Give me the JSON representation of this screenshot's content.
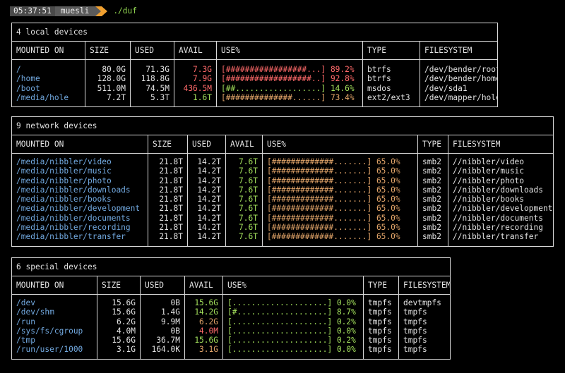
{
  "prompt": {
    "time": "05:37:51",
    "user": "muesli",
    "command": "./duf"
  },
  "colors": {
    "path": "#72a9e0",
    "critical": "#ff6a6a",
    "warning": "#e4a66a",
    "ok": "#a3e05c",
    "border": "#d8d8d8"
  },
  "local": {
    "caption": "4 local devices",
    "headers": {
      "mounted": "MOUNTED ON",
      "size": "SIZE",
      "used": "USED",
      "avail": "AVAIL",
      "use": "USE%",
      "type": "TYPE",
      "fs": "FILESYSTEM"
    },
    "rows": [
      {
        "mounted": "/",
        "size": "80.0G",
        "used": "71.3G",
        "avail": "7.3G",
        "avail_level": "critical",
        "bar": "[#################...]",
        "pct": "89.2%",
        "use_level": "critical",
        "type": "btrfs",
        "fs": "/dev/bender/root"
      },
      {
        "mounted": "/home",
        "size": "128.0G",
        "used": "118.8G",
        "avail": "7.9G",
        "avail_level": "critical",
        "bar": "[##################..]",
        "pct": "92.8%",
        "use_level": "critical",
        "type": "btrfs",
        "fs": "/dev/bender/home"
      },
      {
        "mounted": "/boot",
        "size": "511.0M",
        "used": "74.5M",
        "avail": "436.5M",
        "avail_level": "critical",
        "bar": "[##..................]",
        "pct": "14.6%",
        "use_level": "ok",
        "type": "msdos",
        "fs": "/dev/sda1"
      },
      {
        "mounted": "/media/hole",
        "size": "7.2T",
        "used": "5.3T",
        "avail": "1.6T",
        "avail_level": "ok",
        "bar": "[##############......]",
        "pct": "73.4%",
        "use_level": "warning",
        "type": "ext2/ext3",
        "fs": "/dev/mapper/hole"
      }
    ]
  },
  "network": {
    "caption": "9 network devices",
    "headers": {
      "mounted": "MOUNTED ON",
      "size": "SIZE",
      "used": "USED",
      "avail": "AVAIL",
      "use": "USE%",
      "type": "TYPE",
      "fs": "FILESYSTEM"
    },
    "rows": [
      {
        "mounted": "/media/nibbler/video",
        "size": "21.8T",
        "used": "14.2T",
        "avail": "7.6T",
        "avail_level": "ok",
        "bar": "[#############.......]",
        "pct": "65.0%",
        "use_level": "warning",
        "type": "smb2",
        "fs": "//nibbler/video"
      },
      {
        "mounted": "/media/nibbler/music",
        "size": "21.8T",
        "used": "14.2T",
        "avail": "7.6T",
        "avail_level": "ok",
        "bar": "[#############.......]",
        "pct": "65.0%",
        "use_level": "warning",
        "type": "smb2",
        "fs": "//nibbler/music"
      },
      {
        "mounted": "/media/nibbler/photo",
        "size": "21.8T",
        "used": "14.2T",
        "avail": "7.6T",
        "avail_level": "ok",
        "bar": "[#############.......]",
        "pct": "65.0%",
        "use_level": "warning",
        "type": "smb2",
        "fs": "//nibbler/photo"
      },
      {
        "mounted": "/media/nibbler/downloads",
        "size": "21.8T",
        "used": "14.2T",
        "avail": "7.6T",
        "avail_level": "ok",
        "bar": "[#############.......]",
        "pct": "65.0%",
        "use_level": "warning",
        "type": "smb2",
        "fs": "//nibbler/downloads"
      },
      {
        "mounted": "/media/nibbler/books",
        "size": "21.8T",
        "used": "14.2T",
        "avail": "7.6T",
        "avail_level": "ok",
        "bar": "[#############.......]",
        "pct": "65.0%",
        "use_level": "warning",
        "type": "smb2",
        "fs": "//nibbler/books"
      },
      {
        "mounted": "/media/nibbler/development",
        "size": "21.8T",
        "used": "14.2T",
        "avail": "7.6T",
        "avail_level": "ok",
        "bar": "[#############.......]",
        "pct": "65.0%",
        "use_level": "warning",
        "type": "smb2",
        "fs": "//nibbler/development"
      },
      {
        "mounted": "/media/nibbler/documents",
        "size": "21.8T",
        "used": "14.2T",
        "avail": "7.6T",
        "avail_level": "ok",
        "bar": "[#############.......]",
        "pct": "65.0%",
        "use_level": "warning",
        "type": "smb2",
        "fs": "//nibbler/documents"
      },
      {
        "mounted": "/media/nibbler/recording",
        "size": "21.8T",
        "used": "14.2T",
        "avail": "7.6T",
        "avail_level": "ok",
        "bar": "[#############.......]",
        "pct": "65.0%",
        "use_level": "warning",
        "type": "smb2",
        "fs": "//nibbler/recording"
      },
      {
        "mounted": "/media/nibbler/transfer",
        "size": "21.8T",
        "used": "14.2T",
        "avail": "7.6T",
        "avail_level": "ok",
        "bar": "[#############.......]",
        "pct": "65.0%",
        "use_level": "warning",
        "type": "smb2",
        "fs": "//nibbler/transfer"
      }
    ]
  },
  "special": {
    "caption": "6 special devices",
    "headers": {
      "mounted": "MOUNTED ON",
      "size": "SIZE",
      "used": "USED",
      "avail": "AVAIL",
      "use": "USE%",
      "type": "TYPE",
      "fs": "FILESYSTEM"
    },
    "rows": [
      {
        "mounted": "/dev",
        "size": "15.6G",
        "used": "0B",
        "avail": "15.6G",
        "avail_level": "ok",
        "bar": "[....................]",
        "pct": "0.0%",
        "use_level": "ok",
        "type": "tmpfs",
        "fs": "devtmpfs"
      },
      {
        "mounted": "/dev/shm",
        "size": "15.6G",
        "used": "1.4G",
        "avail": "14.2G",
        "avail_level": "ok",
        "bar": "[#...................]",
        "pct": "8.7%",
        "use_level": "ok",
        "type": "tmpfs",
        "fs": "tmpfs"
      },
      {
        "mounted": "/run",
        "size": "6.2G",
        "used": "9.9M",
        "avail": "6.2G",
        "avail_level": "warning",
        "bar": "[....................]",
        "pct": "0.2%",
        "use_level": "ok",
        "type": "tmpfs",
        "fs": "tmpfs"
      },
      {
        "mounted": "/sys/fs/cgroup",
        "size": "4.0M",
        "used": "0B",
        "avail": "4.0M",
        "avail_level": "critical",
        "bar": "[....................]",
        "pct": "0.0%",
        "use_level": "ok",
        "type": "tmpfs",
        "fs": "tmpfs"
      },
      {
        "mounted": "/tmp",
        "size": "15.6G",
        "used": "36.7M",
        "avail": "15.6G",
        "avail_level": "ok",
        "bar": "[....................]",
        "pct": "0.2%",
        "use_level": "ok",
        "type": "tmpfs",
        "fs": "tmpfs"
      },
      {
        "mounted": "/run/user/1000",
        "size": "3.1G",
        "used": "164.0K",
        "avail": "3.1G",
        "avail_level": "warning",
        "bar": "[....................]",
        "pct": "0.0%",
        "use_level": "ok",
        "type": "tmpfs",
        "fs": "tmpfs"
      }
    ]
  }
}
